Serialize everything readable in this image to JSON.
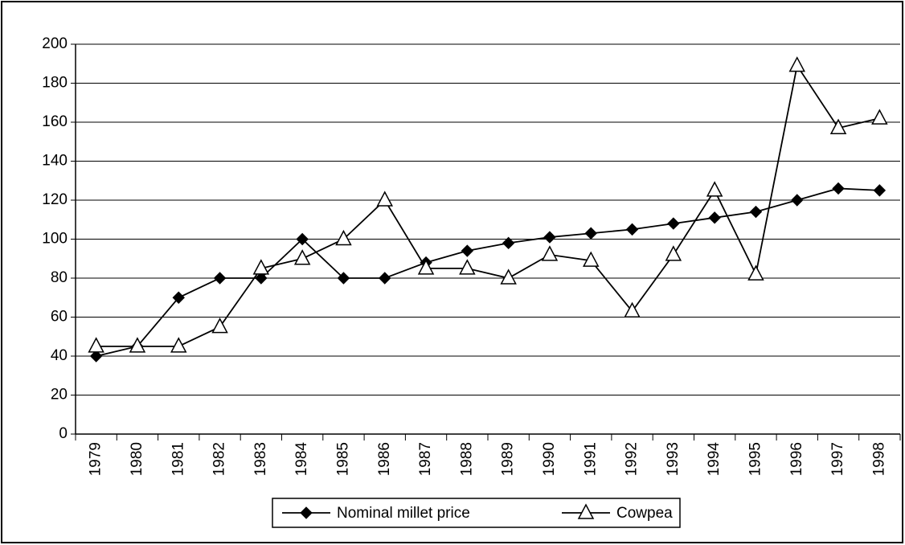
{
  "chart_data": {
    "type": "line",
    "categories": [
      "1979",
      "1980",
      "1981",
      "1982",
      "1983",
      "1984",
      "1985",
      "1986",
      "1987",
      "1988",
      "1989",
      "1990",
      "1991",
      "1992",
      "1993",
      "1994",
      "1995",
      "1996",
      "1997",
      "1998"
    ],
    "series": [
      {
        "name": "Nominal millet price",
        "color": "#000000",
        "marker": "diamond",
        "values": [
          40,
          45,
          70,
          80,
          80,
          100,
          80,
          80,
          88,
          94,
          98,
          101,
          103,
          105,
          108,
          111,
          114,
          120,
          126,
          125
        ]
      },
      {
        "name": "Cowpea",
        "color": "#000000",
        "marker": "triangle",
        "values": [
          45,
          45,
          45,
          55,
          85,
          90,
          100,
          120,
          85,
          85,
          80,
          92,
          89,
          63,
          92,
          125,
          82,
          189,
          157,
          162
        ]
      }
    ],
    "ylim": [
      0,
      200
    ],
    "yticks": [
      0,
      20,
      40,
      60,
      80,
      100,
      120,
      140,
      160,
      180,
      200
    ],
    "grid": true,
    "legend": "bottom"
  }
}
